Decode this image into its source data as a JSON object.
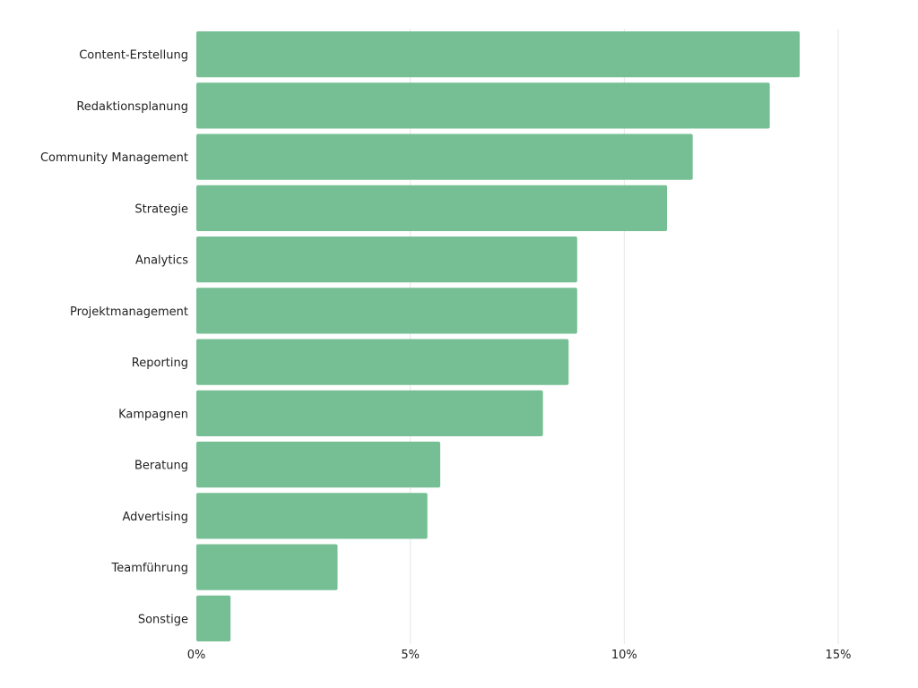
{
  "chart_data": {
    "type": "bar",
    "orientation": "horizontal",
    "title": "",
    "xlabel": "",
    "ylabel": "",
    "categories": [
      "Content-Erstellung",
      "Redaktionsplanung",
      "Community Management",
      "Strategie",
      "Analytics",
      "Projektmanagement",
      "Reporting",
      "Kampagnen",
      "Beratung",
      "Advertising",
      "Teamführung",
      "Sonstige"
    ],
    "values": [
      14.1,
      13.4,
      11.6,
      11.0,
      8.9,
      8.9,
      8.7,
      8.1,
      5.7,
      5.4,
      3.3,
      0.8
    ],
    "unit": "%",
    "xlim": [
      0,
      15
    ],
    "xticks": [
      0,
      5,
      10,
      15
    ],
    "xtick_labels": [
      "0%",
      "5%",
      "10%",
      "15%"
    ],
    "grid": "vertical",
    "bar_color": "#76bf94",
    "legend": "none"
  }
}
